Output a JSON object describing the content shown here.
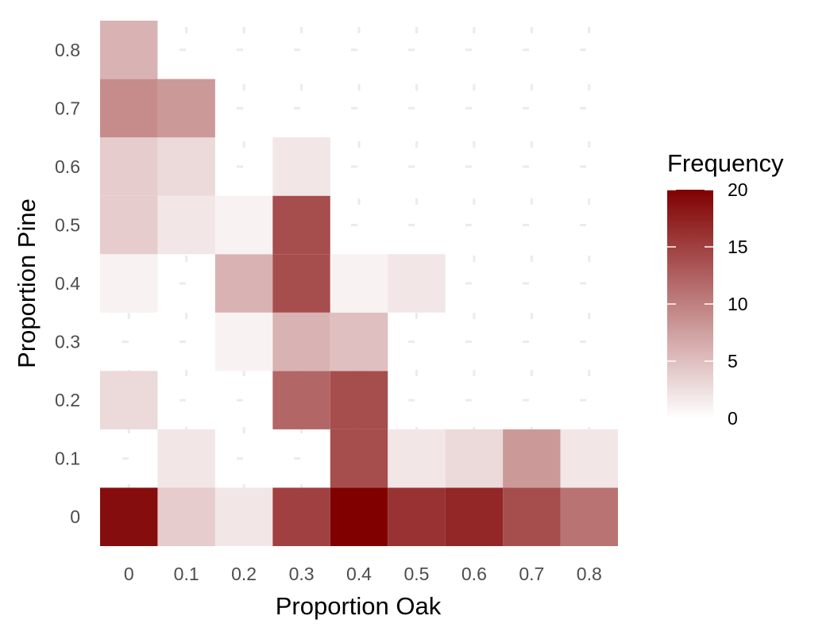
{
  "chart_data": {
    "type": "heatmap",
    "title": "",
    "xlabel": "Proportion Oak",
    "ylabel": "Proportion Pine",
    "x_ticks": [
      "0",
      "0.1",
      "0.2",
      "0.3",
      "0.4",
      "0.5",
      "0.6",
      "0.7",
      "0.8"
    ],
    "y_ticks": [
      "0",
      "0.1",
      "0.2",
      "0.3",
      "0.4",
      "0.5",
      "0.6",
      "0.7",
      "0.8"
    ],
    "x_values": [
      0,
      0.1,
      0.2,
      0.3,
      0.4,
      0.5,
      0.6,
      0.7,
      0.8
    ],
    "y_values": [
      0,
      0.1,
      0.2,
      0.3,
      0.4,
      0.5,
      0.6,
      0.7,
      0.8
    ],
    "cells": [
      {
        "x": 0,
        "y": 0,
        "value": 19
      },
      {
        "x": 0.1,
        "y": 0,
        "value": 4
      },
      {
        "x": 0.2,
        "y": 0,
        "value": 2
      },
      {
        "x": 0.3,
        "y": 0,
        "value": 15
      },
      {
        "x": 0.4,
        "y": 0,
        "value": 20
      },
      {
        "x": 0.5,
        "y": 0,
        "value": 16
      },
      {
        "x": 0.6,
        "y": 0,
        "value": 17
      },
      {
        "x": 0.7,
        "y": 0,
        "value": 14
      },
      {
        "x": 0.8,
        "y": 0,
        "value": 11
      },
      {
        "x": 0.1,
        "y": 0.1,
        "value": 2
      },
      {
        "x": 0.4,
        "y": 0.1,
        "value": 14
      },
      {
        "x": 0.5,
        "y": 0.1,
        "value": 2
      },
      {
        "x": 0.6,
        "y": 0.1,
        "value": 3
      },
      {
        "x": 0.7,
        "y": 0.1,
        "value": 8
      },
      {
        "x": 0.8,
        "y": 0.1,
        "value": 2
      },
      {
        "x": 0,
        "y": 0.2,
        "value": 3
      },
      {
        "x": 0.3,
        "y": 0.2,
        "value": 12
      },
      {
        "x": 0.4,
        "y": 0.2,
        "value": 14
      },
      {
        "x": 0.2,
        "y": 0.3,
        "value": 1
      },
      {
        "x": 0.3,
        "y": 0.3,
        "value": 6
      },
      {
        "x": 0.4,
        "y": 0.3,
        "value": 5
      },
      {
        "x": 0,
        "y": 0.4,
        "value": 1
      },
      {
        "x": 0.2,
        "y": 0.4,
        "value": 6
      },
      {
        "x": 0.3,
        "y": 0.4,
        "value": 14
      },
      {
        "x": 0.4,
        "y": 0.4,
        "value": 1
      },
      {
        "x": 0.5,
        "y": 0.4,
        "value": 2
      },
      {
        "x": 0,
        "y": 0.5,
        "value": 4
      },
      {
        "x": 0.1,
        "y": 0.5,
        "value": 2
      },
      {
        "x": 0.2,
        "y": 0.5,
        "value": 1
      },
      {
        "x": 0.3,
        "y": 0.5,
        "value": 14
      },
      {
        "x": 0,
        "y": 0.6,
        "value": 4
      },
      {
        "x": 0.1,
        "y": 0.6,
        "value": 3
      },
      {
        "x": 0.3,
        "y": 0.6,
        "value": 2
      },
      {
        "x": 0,
        "y": 0.7,
        "value": 9
      },
      {
        "x": 0.1,
        "y": 0.7,
        "value": 8
      },
      {
        "x": 0,
        "y": 0.8,
        "value": 6
      }
    ],
    "xlim": [
      -0.05,
      0.85
    ],
    "ylim": [
      -0.05,
      0.85
    ],
    "grid": true,
    "legend": {
      "title": "Frequency",
      "position": "right",
      "ticks": [
        "0",
        "5",
        "10",
        "15",
        "20"
      ],
      "tick_values": [
        0,
        5,
        10,
        15,
        20
      ],
      "min": 0,
      "max": 20
    },
    "colors": {
      "low": "#ffffff",
      "high": "#800000",
      "grid": "#ebebeb",
      "background": "#ffffff"
    }
  }
}
